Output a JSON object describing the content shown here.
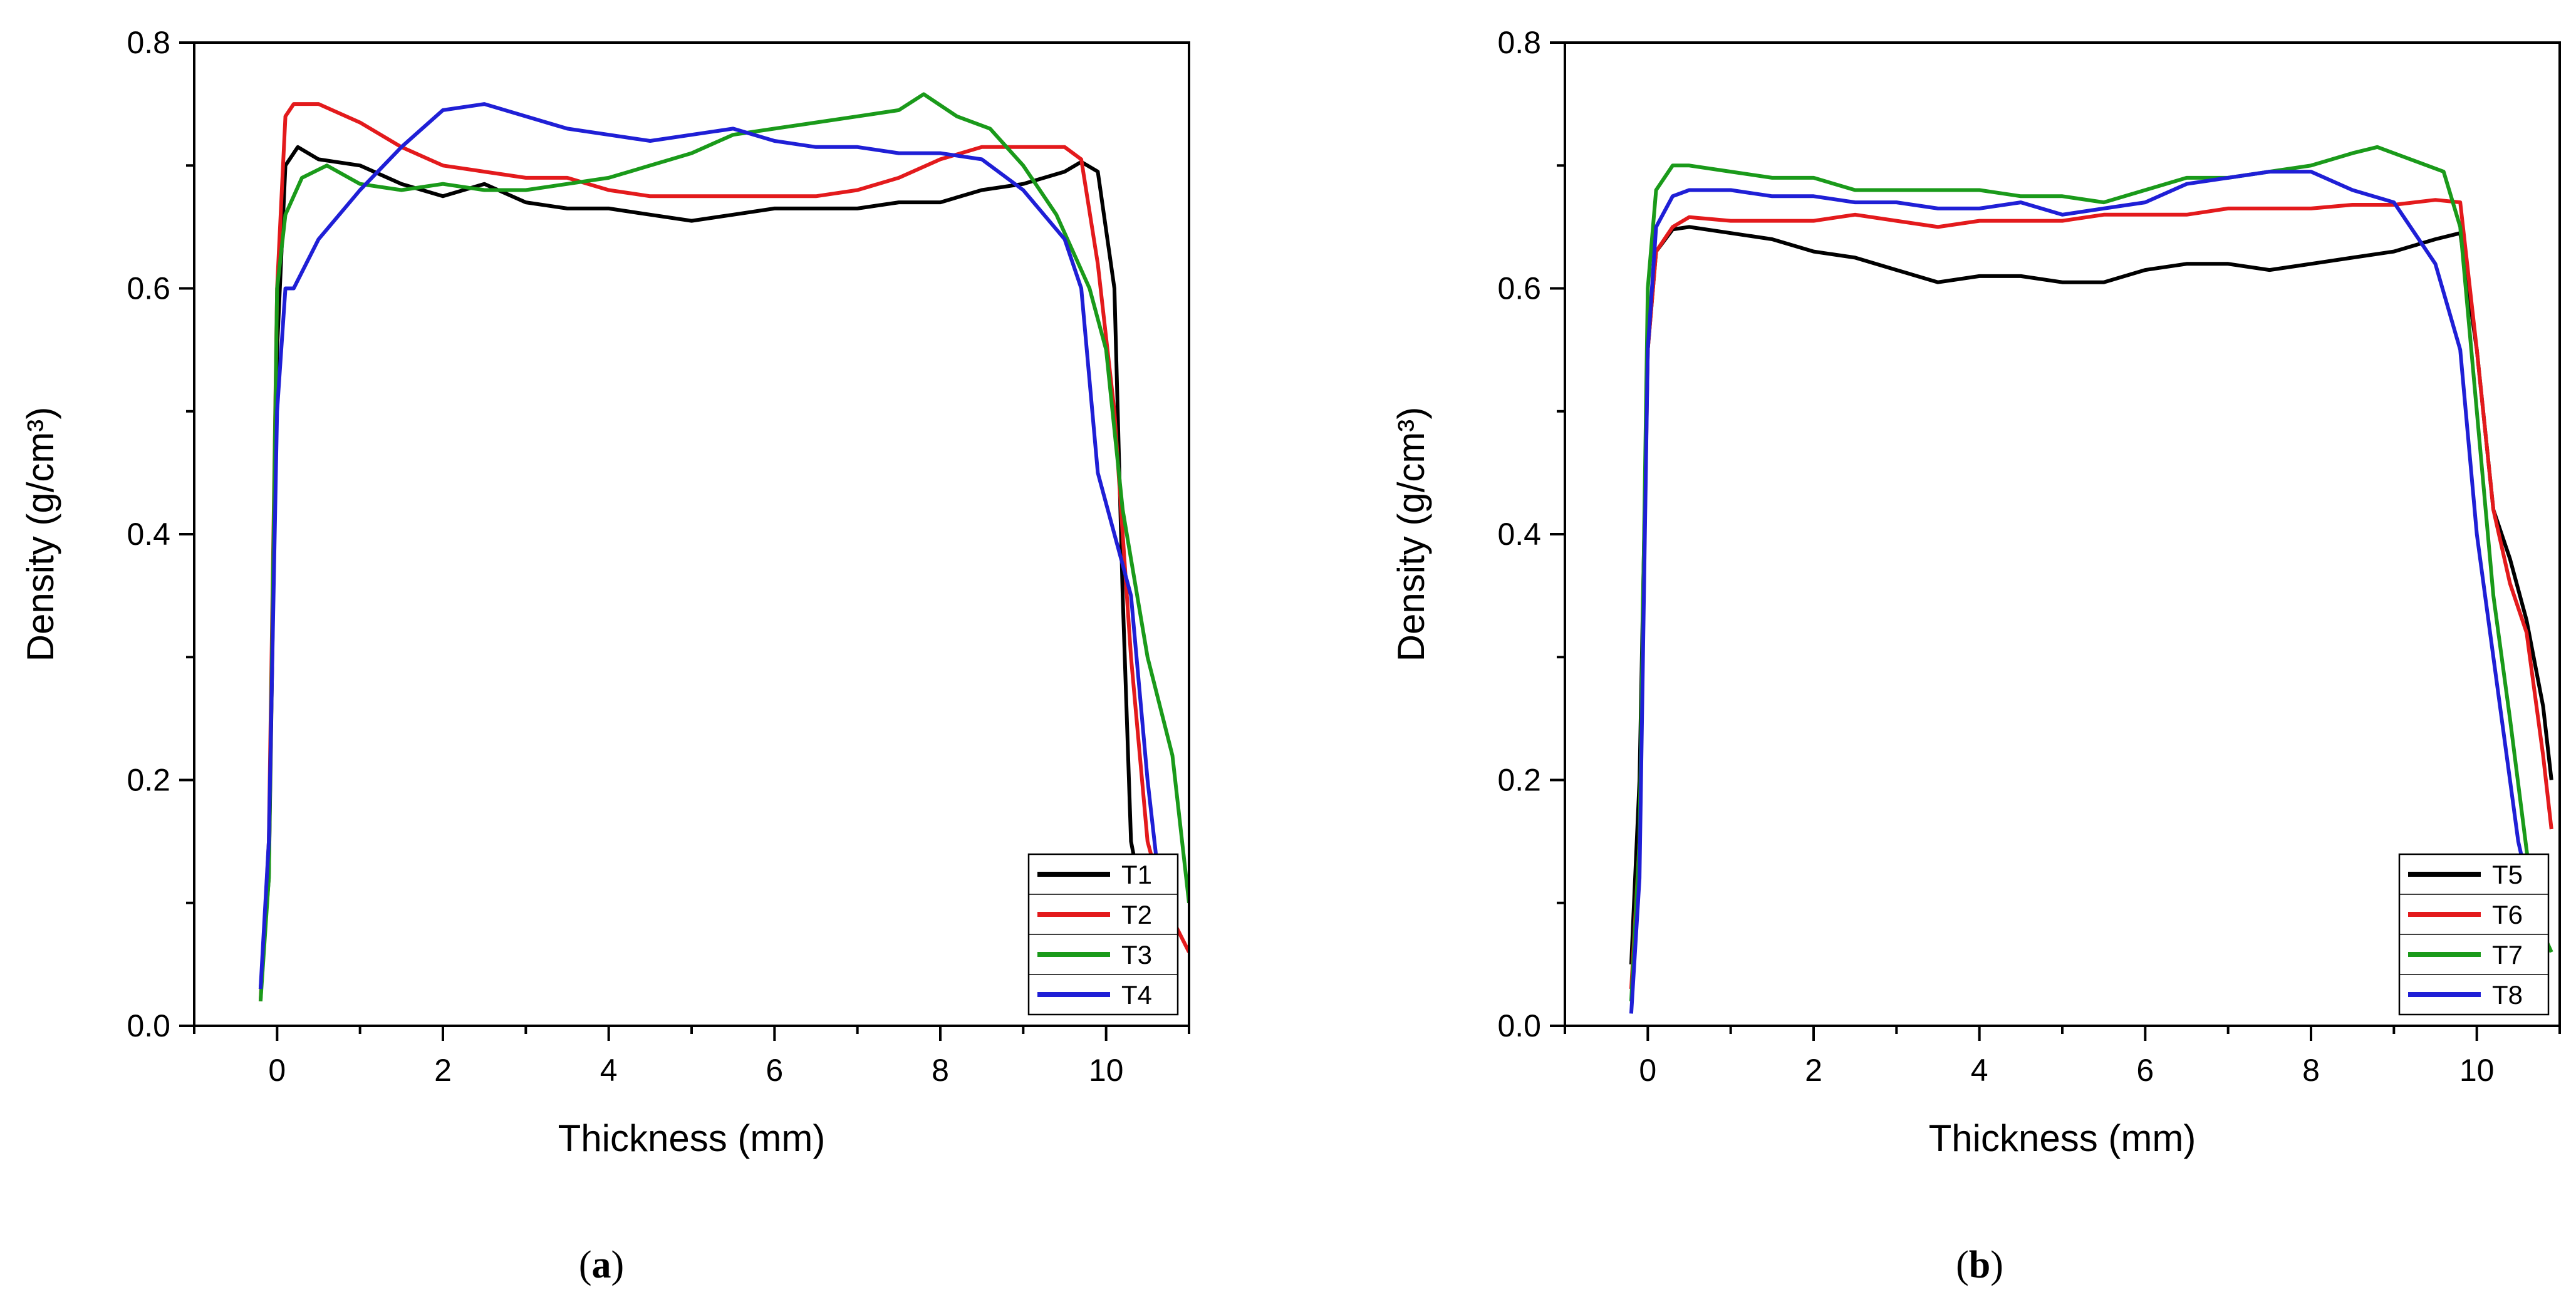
{
  "chart_data": [
    {
      "type": "line",
      "panel_label_prefix": "(",
      "panel_label": "a",
      "panel_label_suffix": ")",
      "xlabel": "Thickness (mm)",
      "ylabel": "Density (g/cm³)",
      "xlim": [
        -1,
        11
      ],
      "ylim": [
        0,
        0.8
      ],
      "xticks": [
        "0",
        "2",
        "4",
        "6",
        "8",
        "10"
      ],
      "yticks": [
        "0.0",
        "0.2",
        "0.4",
        "0.6",
        "0.8"
      ],
      "grid": false,
      "legend_position": "bottom-right",
      "series": [
        {
          "name": "T1",
          "color": "#000000",
          "x": [
            -0.2,
            -0.1,
            0,
            0.1,
            0.25,
            0.5,
            1,
            1.5,
            2,
            2.5,
            3,
            3.5,
            4,
            4.5,
            5,
            5.5,
            6,
            6.5,
            7,
            7.5,
            8,
            8.5,
            9,
            9.5,
            9.7,
            9.9,
            10.1,
            10.2,
            10.3,
            10.5,
            10.7,
            10.85
          ],
          "y": [
            0.03,
            0.12,
            0.55,
            0.7,
            0.715,
            0.705,
            0.7,
            0.685,
            0.675,
            0.685,
            0.67,
            0.665,
            0.665,
            0.66,
            0.655,
            0.66,
            0.665,
            0.665,
            0.665,
            0.67,
            0.67,
            0.68,
            0.685,
            0.695,
            0.703,
            0.695,
            0.6,
            0.35,
            0.15,
            0.08,
            0.05,
            0.025
          ]
        },
        {
          "name": "T2",
          "color": "#e31a1c",
          "x": [
            -0.2,
            -0.1,
            0,
            0.1,
            0.2,
            0.5,
            1,
            1.5,
            2,
            2.5,
            3,
            3.5,
            4,
            4.5,
            5,
            5.5,
            6,
            6.5,
            7,
            7.5,
            8,
            8.5,
            9,
            9.5,
            9.7,
            9.9,
            10.1,
            10.3,
            10.5,
            10.7,
            11
          ],
          "y": [
            0.02,
            0.15,
            0.6,
            0.74,
            0.75,
            0.75,
            0.735,
            0.715,
            0.7,
            0.695,
            0.69,
            0.69,
            0.68,
            0.675,
            0.675,
            0.675,
            0.675,
            0.675,
            0.68,
            0.69,
            0.705,
            0.715,
            0.715,
            0.715,
            0.705,
            0.62,
            0.5,
            0.3,
            0.15,
            0.1,
            0.06
          ]
        },
        {
          "name": "T3",
          "color": "#1a9a1a",
          "x": [
            -0.2,
            -0.1,
            0,
            0.1,
            0.3,
            0.6,
            1,
            1.5,
            2,
            2.5,
            3,
            3.5,
            4,
            4.5,
            5,
            5.5,
            6,
            6.5,
            7,
            7.5,
            7.8,
            8.2,
            8.6,
            9,
            9.4,
            9.8,
            10,
            10.2,
            10.5,
            10.8,
            11
          ],
          "y": [
            0.02,
            0.12,
            0.6,
            0.66,
            0.69,
            0.7,
            0.685,
            0.68,
            0.685,
            0.68,
            0.68,
            0.685,
            0.69,
            0.7,
            0.71,
            0.725,
            0.73,
            0.735,
            0.74,
            0.745,
            0.758,
            0.74,
            0.73,
            0.7,
            0.66,
            0.6,
            0.55,
            0.42,
            0.3,
            0.22,
            0.1
          ]
        },
        {
          "name": "T4",
          "color": "#1f1fd6",
          "x": [
            -0.2,
            -0.1,
            0,
            0.1,
            0.2,
            0.5,
            1,
            1.5,
            2,
            2.5,
            3,
            3.5,
            4,
            4.5,
            5,
            5.5,
            6,
            6.5,
            7,
            7.5,
            8,
            8.5,
            9,
            9.5,
            9.7,
            9.9,
            10.1,
            10.3,
            10.5,
            10.7,
            10.85
          ],
          "y": [
            0.03,
            0.15,
            0.5,
            0.6,
            0.6,
            0.64,
            0.68,
            0.715,
            0.745,
            0.75,
            0.74,
            0.73,
            0.725,
            0.72,
            0.725,
            0.73,
            0.72,
            0.715,
            0.715,
            0.71,
            0.71,
            0.705,
            0.68,
            0.64,
            0.6,
            0.45,
            0.4,
            0.35,
            0.2,
            0.08,
            0.04
          ]
        }
      ]
    },
    {
      "type": "line",
      "panel_label_prefix": "(",
      "panel_label": "b",
      "panel_label_suffix": ")",
      "xlabel": "Thickness (mm)",
      "ylabel": "Density (g/cm³)",
      "xlim": [
        -1,
        11
      ],
      "ylim": [
        0,
        0.8
      ],
      "xticks": [
        "0",
        "2",
        "4",
        "6",
        "8",
        "10"
      ],
      "yticks": [
        "0.0",
        "0.2",
        "0.4",
        "0.6",
        "0.8"
      ],
      "grid": false,
      "legend_position": "bottom-right",
      "series": [
        {
          "name": "T5",
          "color": "#000000",
          "x": [
            -0.2,
            -0.1,
            0,
            0.1,
            0.3,
            0.5,
            1,
            1.5,
            2,
            2.5,
            3,
            3.5,
            4,
            4.5,
            5,
            5.5,
            6,
            6.5,
            7,
            7.5,
            8,
            8.5,
            9,
            9.5,
            9.8,
            10,
            10.2,
            10.4,
            10.6,
            10.8,
            10.9
          ],
          "y": [
            0.05,
            0.2,
            0.55,
            0.63,
            0.648,
            0.65,
            0.645,
            0.64,
            0.63,
            0.625,
            0.615,
            0.605,
            0.61,
            0.61,
            0.605,
            0.605,
            0.615,
            0.62,
            0.62,
            0.615,
            0.62,
            0.625,
            0.63,
            0.64,
            0.645,
            0.55,
            0.42,
            0.38,
            0.33,
            0.26,
            0.2
          ]
        },
        {
          "name": "T6",
          "color": "#e31a1c",
          "x": [
            -0.2,
            -0.1,
            0,
            0.1,
            0.3,
            0.5,
            1,
            1.5,
            2,
            2.5,
            3,
            3.5,
            4,
            4.5,
            5,
            5.5,
            6,
            6.5,
            7,
            7.5,
            8,
            8.5,
            9,
            9.5,
            9.8,
            10,
            10.2,
            10.4,
            10.6,
            10.8,
            10.9
          ],
          "y": [
            0.03,
            0.15,
            0.55,
            0.63,
            0.65,
            0.658,
            0.655,
            0.655,
            0.655,
            0.66,
            0.655,
            0.65,
            0.655,
            0.655,
            0.655,
            0.66,
            0.66,
            0.66,
            0.665,
            0.665,
            0.665,
            0.668,
            0.668,
            0.672,
            0.67,
            0.55,
            0.42,
            0.36,
            0.32,
            0.22,
            0.16
          ]
        },
        {
          "name": "T7",
          "color": "#1a9a1a",
          "x": [
            -0.2,
            -0.1,
            0,
            0.1,
            0.3,
            0.5,
            1,
            1.5,
            2,
            2.5,
            3,
            3.5,
            4,
            4.5,
            5,
            5.5,
            6,
            6.5,
            7,
            7.5,
            8,
            8.5,
            8.8,
            9.2,
            9.6,
            9.8,
            10,
            10.2,
            10.4,
            10.7,
            10.9
          ],
          "y": [
            0.02,
            0.15,
            0.6,
            0.68,
            0.7,
            0.7,
            0.695,
            0.69,
            0.69,
            0.68,
            0.68,
            0.68,
            0.68,
            0.675,
            0.675,
            0.67,
            0.68,
            0.69,
            0.69,
            0.695,
            0.7,
            0.71,
            0.715,
            0.705,
            0.695,
            0.65,
            0.5,
            0.35,
            0.25,
            0.09,
            0.06
          ]
        },
        {
          "name": "T8",
          "color": "#1f1fd6",
          "x": [
            -0.2,
            -0.1,
            0,
            0.1,
            0.3,
            0.5,
            1,
            1.5,
            2,
            2.5,
            3,
            3.5,
            4,
            4.5,
            5,
            5.5,
            6,
            6.5,
            7,
            7.5,
            8,
            8.5,
            9,
            9.5,
            9.8,
            10,
            10.2,
            10.4,
            10.5,
            10.6,
            10.7
          ],
          "y": [
            0.01,
            0.12,
            0.55,
            0.65,
            0.675,
            0.68,
            0.68,
            0.675,
            0.675,
            0.67,
            0.67,
            0.665,
            0.665,
            0.67,
            0.66,
            0.665,
            0.67,
            0.685,
            0.69,
            0.695,
            0.695,
            0.68,
            0.67,
            0.62,
            0.55,
            0.4,
            0.3,
            0.2,
            0.15,
            0.12,
            0.09
          ]
        }
      ]
    }
  ]
}
